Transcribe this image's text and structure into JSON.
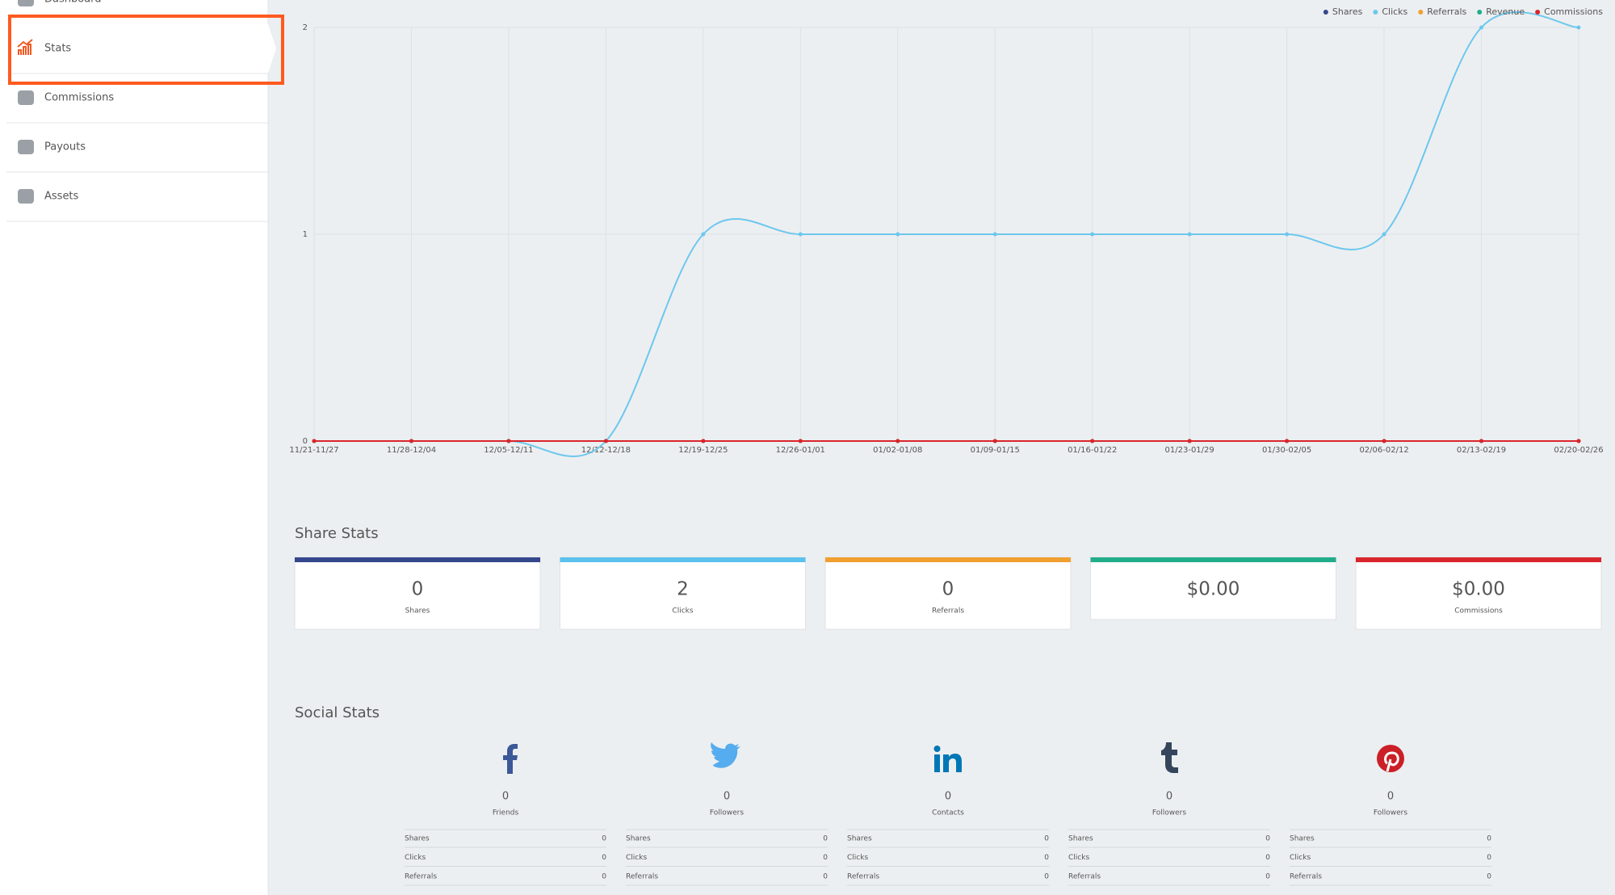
{
  "sidebar": {
    "items": [
      "Dashboard",
      "Stats",
      "Commissions",
      "Payouts",
      "Assets"
    ],
    "active": 1
  },
  "chart_data": {
    "type": "line",
    "categories": [
      "11/21-11/27",
      "11/28-12/04",
      "12/05-12/11",
      "12/12-12/18",
      "12/19-12/25",
      "12/26-01/01",
      "01/02-01/08",
      "01/09-01/15",
      "01/16-01/22",
      "01/23-01/29",
      "01/30-02/05",
      "02/06-02/12",
      "02/13-02/19",
      "02/20-02/26"
    ],
    "series": [
      {
        "name": "Shares",
        "color": "#34478c",
        "values": [
          0,
          0,
          0,
          0,
          0,
          0,
          0,
          0,
          0,
          0,
          0,
          0,
          0,
          0
        ]
      },
      {
        "name": "Clicks",
        "color": "#6cc7ee",
        "values": [
          0,
          0,
          0,
          0,
          1,
          1,
          1,
          1,
          1,
          1,
          1,
          1,
          2,
          2
        ]
      },
      {
        "name": "Referrals",
        "color": "#f0a030",
        "values": [
          0,
          0,
          0,
          0,
          0,
          0,
          0,
          0,
          0,
          0,
          0,
          0,
          0,
          0
        ]
      },
      {
        "name": "Revenue",
        "color": "#21ad8a",
        "values": [
          0,
          0,
          0,
          0,
          0,
          0,
          0,
          0,
          0,
          0,
          0,
          0,
          0,
          0
        ]
      },
      {
        "name": "Commissions",
        "color": "#d9262c",
        "values": [
          0,
          0,
          0,
          0,
          0,
          0,
          0,
          0,
          0,
          0,
          0,
          0,
          0,
          0
        ]
      }
    ],
    "ylim": [
      0,
      2
    ],
    "yticks": [
      0,
      1,
      2
    ],
    "grid": true,
    "legend": "top-right"
  },
  "share_stats": {
    "title": "Share Stats",
    "cards": [
      {
        "value": 0,
        "label": "Shares",
        "color": "#34478c"
      },
      {
        "value": 2,
        "label": "Clicks",
        "color": "#5bc2ee"
      },
      {
        "value": 0,
        "label": "Referrals",
        "color": "#f0a030"
      },
      {
        "value": "$0.00",
        "label": null,
        "color": "#21ad8a"
      },
      {
        "value": "$0.00",
        "label": "Commissions",
        "color": "#d9262c"
      }
    ]
  },
  "social_stats": {
    "title": "Social Stats",
    "networks": [
      {
        "count": 0,
        "label": "Friends",
        "color": "#3b5998",
        "rows": [
          {
            "label": "Shares",
            "value": 0
          },
          {
            "label": "Clicks",
            "value": 0
          },
          {
            "label": "Referrals",
            "value": 0
          }
        ]
      },
      {
        "count": 0,
        "label": "Followers",
        "color": "#55acee",
        "rows": [
          {
            "label": "Shares",
            "value": 0
          },
          {
            "label": "Clicks",
            "value": 0
          },
          {
            "label": "Referrals",
            "value": 0
          }
        ]
      },
      {
        "count": 0,
        "label": "Contacts",
        "color": "#0077b5",
        "rows": [
          {
            "label": "Shares",
            "value": 0
          },
          {
            "label": "Clicks",
            "value": 0
          },
          {
            "label": "Referrals",
            "value": 0
          }
        ]
      },
      {
        "count": 0,
        "label": "Followers",
        "color": "#35465c",
        "rows": [
          {
            "label": "Shares",
            "value": 0
          },
          {
            "label": "Clicks",
            "value": 0
          },
          {
            "label": "Referrals",
            "value": 0
          }
        ]
      },
      {
        "count": 0,
        "label": "Followers",
        "color": "#cb2027",
        "rows": [
          {
            "label": "Shares",
            "value": 0
          },
          {
            "label": "Clicks",
            "value": 0
          },
          {
            "label": "Referrals",
            "value": 0
          }
        ]
      }
    ]
  }
}
